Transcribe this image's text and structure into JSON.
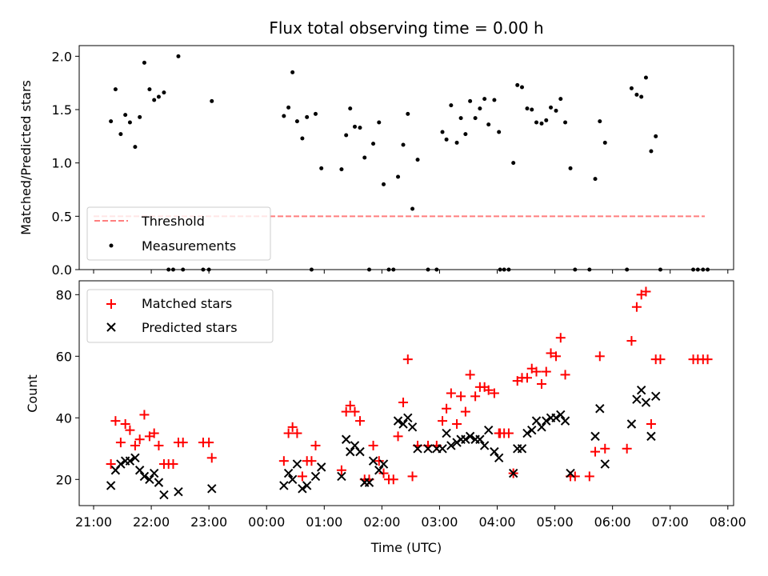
{
  "chart_data": {
    "type": "scatter",
    "title": "Flux total observing time = 0.00 h",
    "x_tick_labels": [
      "21:00",
      "22:00",
      "23:00",
      "00:00",
      "01:00",
      "02:00",
      "03:00",
      "04:00",
      "05:00",
      "06:00",
      "07:00",
      "08:00"
    ],
    "xlabel": "Time (UTC)",
    "xlim_hours": [
      -0.25,
      11.1
    ],
    "top_panel": {
      "ylabel": "Matched/Predicted stars",
      "ylim": [
        0,
        2.1
      ],
      "y_ticks": [
        0.0,
        0.5,
        1.0,
        1.5,
        2.0
      ],
      "y_tick_labels": [
        "0.0",
        "0.5",
        "1.0",
        "1.5",
        "2.0"
      ],
      "threshold": {
        "name": "Threshold",
        "value": 0.5,
        "x_range": [
          0.0,
          10.6
        ],
        "color": "#ff7f7f"
      },
      "measurements": {
        "name": "Measurements",
        "color": "#000000",
        "points": [
          [
            0.3,
            1.39
          ],
          [
            0.38,
            1.69
          ],
          [
            0.47,
            1.27
          ],
          [
            0.55,
            1.45
          ],
          [
            0.63,
            1.38
          ],
          [
            0.72,
            1.15
          ],
          [
            0.8,
            1.43
          ],
          [
            0.88,
            1.94
          ],
          [
            0.97,
            1.69
          ],
          [
            1.05,
            1.59
          ],
          [
            1.13,
            1.62
          ],
          [
            1.22,
            1.66
          ],
          [
            1.3,
            0.0
          ],
          [
            1.38,
            0.0
          ],
          [
            1.47,
            2.0
          ],
          [
            1.55,
            0.0
          ],
          [
            1.9,
            0.0
          ],
          [
            2.0,
            0.0
          ],
          [
            2.05,
            1.58
          ],
          [
            3.3,
            1.44
          ],
          [
            3.38,
            1.52
          ],
          [
            3.45,
            1.85
          ],
          [
            3.53,
            1.39
          ],
          [
            3.62,
            1.23
          ],
          [
            3.7,
            1.43
          ],
          [
            3.78,
            0.0
          ],
          [
            3.85,
            1.46
          ],
          [
            3.95,
            0.95
          ],
          [
            4.3,
            0.94
          ],
          [
            4.38,
            1.26
          ],
          [
            4.45,
            1.51
          ],
          [
            4.53,
            1.34
          ],
          [
            4.62,
            1.33
          ],
          [
            4.7,
            1.05
          ],
          [
            4.78,
            0.0
          ],
          [
            4.85,
            1.18
          ],
          [
            4.95,
            1.38
          ],
          [
            5.03,
            0.8
          ],
          [
            5.12,
            0.0
          ],
          [
            5.2,
            0.0
          ],
          [
            5.28,
            0.87
          ],
          [
            5.37,
            1.17
          ],
          [
            5.45,
            1.46
          ],
          [
            5.53,
            0.57
          ],
          [
            5.62,
            1.03
          ],
          [
            5.8,
            0.0
          ],
          [
            5.95,
            0.0
          ],
          [
            6.05,
            1.29
          ],
          [
            6.12,
            1.22
          ],
          [
            6.2,
            1.54
          ],
          [
            6.3,
            1.19
          ],
          [
            6.37,
            1.42
          ],
          [
            6.45,
            1.27
          ],
          [
            6.53,
            1.58
          ],
          [
            6.62,
            1.42
          ],
          [
            6.7,
            1.51
          ],
          [
            6.78,
            1.6
          ],
          [
            6.85,
            1.36
          ],
          [
            6.95,
            1.59
          ],
          [
            7.03,
            1.29
          ],
          [
            7.05,
            0.0
          ],
          [
            7.12,
            0.0
          ],
          [
            7.2,
            0.0
          ],
          [
            7.28,
            1.0
          ],
          [
            7.35,
            1.73
          ],
          [
            7.43,
            1.71
          ],
          [
            7.52,
            1.51
          ],
          [
            7.6,
            1.5
          ],
          [
            7.68,
            1.38
          ],
          [
            7.77,
            1.37
          ],
          [
            7.85,
            1.4
          ],
          [
            7.93,
            1.52
          ],
          [
            8.02,
            1.49
          ],
          [
            8.1,
            1.6
          ],
          [
            8.18,
            1.38
          ],
          [
            8.27,
            0.95
          ],
          [
            8.35,
            0.0
          ],
          [
            8.6,
            0.0
          ],
          [
            8.7,
            0.85
          ],
          [
            8.78,
            1.39
          ],
          [
            8.87,
            1.19
          ],
          [
            9.25,
            0.0
          ],
          [
            9.33,
            1.7
          ],
          [
            9.42,
            1.64
          ],
          [
            9.5,
            1.62
          ],
          [
            9.58,
            1.8
          ],
          [
            9.67,
            1.11
          ],
          [
            9.75,
            1.25
          ],
          [
            9.83,
            0.0
          ],
          [
            10.4,
            0.0
          ],
          [
            10.48,
            0.0
          ],
          [
            10.57,
            0.0
          ],
          [
            10.65,
            0.0
          ]
        ]
      }
    },
    "bottom_panel": {
      "ylabel": "Count",
      "ylim": [
        11.5,
        84.5
      ],
      "y_ticks": [
        20,
        40,
        60,
        80
      ],
      "y_tick_labels": [
        "20",
        "40",
        "60",
        "80"
      ],
      "series": [
        {
          "name": "Matched stars",
          "marker": "+",
          "color": "#ff0000",
          "points": [
            [
              0.3,
              25
            ],
            [
              0.38,
              39
            ],
            [
              0.47,
              32
            ],
            [
              0.55,
              38
            ],
            [
              0.63,
              36
            ],
            [
              0.72,
              31
            ],
            [
              0.8,
              33
            ],
            [
              0.88,
              41
            ],
            [
              0.97,
              34
            ],
            [
              1.05,
              35
            ],
            [
              1.13,
              31
            ],
            [
              1.22,
              25
            ],
            [
              1.3,
              25
            ],
            [
              1.38,
              25
            ],
            [
              1.47,
              32
            ],
            [
              1.55,
              32
            ],
            [
              1.9,
              32
            ],
            [
              2.0,
              32
            ],
            [
              2.05,
              27
            ],
            [
              3.3,
              26
            ],
            [
              3.38,
              35
            ],
            [
              3.45,
              37
            ],
            [
              3.53,
              35
            ],
            [
              3.62,
              21
            ],
            [
              3.7,
              26
            ],
            [
              3.78,
              26
            ],
            [
              3.85,
              31
            ],
            [
              4.3,
              23
            ],
            [
              4.38,
              42
            ],
            [
              4.45,
              44
            ],
            [
              4.53,
              42
            ],
            [
              4.62,
              39
            ],
            [
              4.7,
              20
            ],
            [
              4.78,
              20
            ],
            [
              4.85,
              31
            ],
            [
              4.95,
              26
            ],
            [
              5.03,
              22
            ],
            [
              5.12,
              20
            ],
            [
              5.2,
              20
            ],
            [
              5.28,
              34
            ],
            [
              5.37,
              45
            ],
            [
              5.45,
              59
            ],
            [
              5.53,
              21
            ],
            [
              5.62,
              31
            ],
            [
              5.8,
              31
            ],
            [
              5.95,
              31
            ],
            [
              6.05,
              39
            ],
            [
              6.12,
              43
            ],
            [
              6.2,
              48
            ],
            [
              6.3,
              38
            ],
            [
              6.37,
              47
            ],
            [
              6.45,
              42
            ],
            [
              6.53,
              54
            ],
            [
              6.62,
              47
            ],
            [
              6.7,
              50
            ],
            [
              6.78,
              50
            ],
            [
              6.85,
              49
            ],
            [
              6.95,
              48
            ],
            [
              7.03,
              35
            ],
            [
              7.05,
              35
            ],
            [
              7.12,
              35
            ],
            [
              7.2,
              35
            ],
            [
              7.28,
              22
            ],
            [
              7.35,
              52
            ],
            [
              7.43,
              53
            ],
            [
              7.52,
              53
            ],
            [
              7.6,
              56
            ],
            [
              7.68,
              55
            ],
            [
              7.77,
              51
            ],
            [
              7.85,
              55
            ],
            [
              7.93,
              61
            ],
            [
              8.02,
              60
            ],
            [
              8.1,
              66
            ],
            [
              8.18,
              54
            ],
            [
              8.27,
              21
            ],
            [
              8.35,
              21
            ],
            [
              8.6,
              21
            ],
            [
              8.7,
              29
            ],
            [
              8.78,
              60
            ],
            [
              8.87,
              30
            ],
            [
              9.25,
              30
            ],
            [
              9.33,
              65
            ],
            [
              9.42,
              76
            ],
            [
              9.5,
              80
            ],
            [
              9.58,
              81
            ],
            [
              9.67,
              38
            ],
            [
              9.75,
              59
            ],
            [
              9.83,
              59
            ],
            [
              10.4,
              59
            ],
            [
              10.48,
              59
            ],
            [
              10.57,
              59
            ],
            [
              10.65,
              59
            ]
          ]
        },
        {
          "name": "Predicted stars",
          "marker": "x",
          "color": "#000000",
          "points": [
            [
              0.3,
              18
            ],
            [
              0.38,
              23
            ],
            [
              0.47,
              25
            ],
            [
              0.55,
              26
            ],
            [
              0.63,
              26
            ],
            [
              0.72,
              27
            ],
            [
              0.8,
              23
            ],
            [
              0.88,
              21
            ],
            [
              0.97,
              20
            ],
            [
              1.05,
              22
            ],
            [
              1.13,
              19
            ],
            [
              1.22,
              15
            ],
            [
              1.47,
              16
            ],
            [
              2.05,
              17
            ],
            [
              3.3,
              18
            ],
            [
              3.38,
              22
            ],
            [
              3.45,
              20
            ],
            [
              3.53,
              25
            ],
            [
              3.62,
              17
            ],
            [
              3.7,
              18
            ],
            [
              3.85,
              21
            ],
            [
              3.95,
              24
            ],
            [
              4.3,
              21
            ],
            [
              4.38,
              33
            ],
            [
              4.45,
              29
            ],
            [
              4.53,
              31
            ],
            [
              4.62,
              29
            ],
            [
              4.7,
              19
            ],
            [
              4.78,
              19
            ],
            [
              4.85,
              26
            ],
            [
              4.95,
              23
            ],
            [
              5.03,
              25
            ],
            [
              5.28,
              39
            ],
            [
              5.37,
              38
            ],
            [
              5.45,
              40
            ],
            [
              5.53,
              37
            ],
            [
              5.62,
              30
            ],
            [
              5.8,
              30
            ],
            [
              5.95,
              30
            ],
            [
              6.05,
              30
            ],
            [
              6.12,
              35
            ],
            [
              6.2,
              31
            ],
            [
              6.3,
              32
            ],
            [
              6.37,
              33
            ],
            [
              6.45,
              33
            ],
            [
              6.53,
              34
            ],
            [
              6.62,
              33
            ],
            [
              6.7,
              33
            ],
            [
              6.78,
              31
            ],
            [
              6.85,
              36
            ],
            [
              6.95,
              29
            ],
            [
              7.03,
              27
            ],
            [
              7.28,
              22
            ],
            [
              7.35,
              30
            ],
            [
              7.43,
              30
            ],
            [
              7.52,
              35
            ],
            [
              7.6,
              36
            ],
            [
              7.68,
              39
            ],
            [
              7.77,
              37
            ],
            [
              7.85,
              39
            ],
            [
              7.93,
              40
            ],
            [
              8.02,
              40
            ],
            [
              8.1,
              41
            ],
            [
              8.18,
              39
            ],
            [
              8.27,
              22
            ],
            [
              8.7,
              34
            ],
            [
              8.78,
              43
            ],
            [
              8.87,
              25
            ],
            [
              9.33,
              38
            ],
            [
              9.42,
              46
            ],
            [
              9.5,
              49
            ],
            [
              9.58,
              45
            ],
            [
              9.67,
              34
            ],
            [
              9.75,
              47
            ]
          ]
        }
      ]
    }
  }
}
